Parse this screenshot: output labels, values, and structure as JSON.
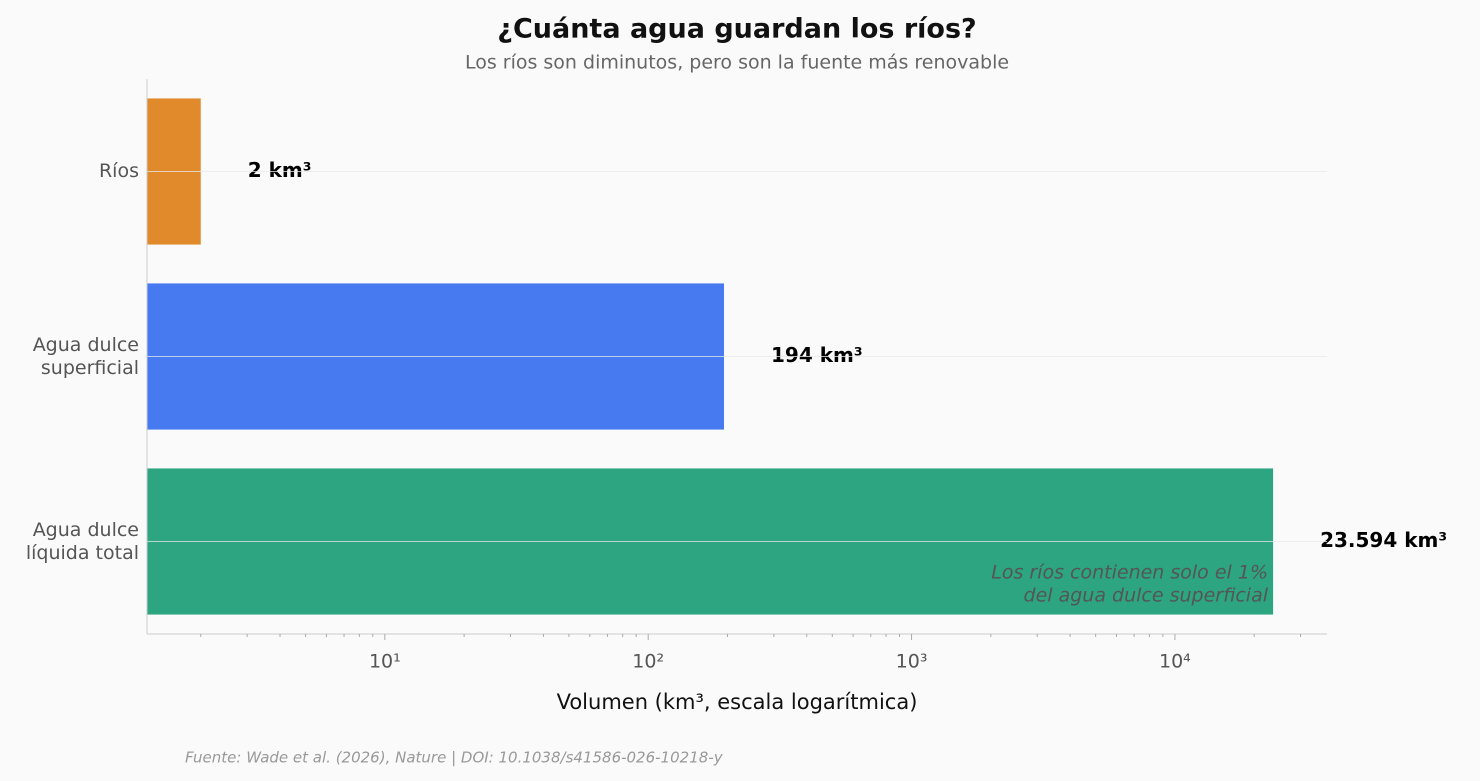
{
  "chart_data": {
    "type": "barh",
    "title": "¿Cuánta agua guardan los ríos?",
    "subtitle": "Los ríos son diminutos, pero son la fuente más renovable",
    "xlabel": "Volumen (km³, escala logarítmica)",
    "source": "Fuente: Wade et al. (2026), Nature | DOI: 10.1038/s41586-026-10218-y",
    "annotation": "Los ríos contienen solo el 1%\ndel agua dulce superficial",
    "categories": [
      "Ríos",
      "Agua dulce\nsuperficial",
      "Agua dulce\nlíquida total"
    ],
    "values": [
      2,
      194,
      23594
    ],
    "value_labels": [
      "2 km³",
      "194 km³",
      "23.594 km³"
    ],
    "colors": [
      "#e08a2c",
      "#4779f0",
      "#2ca580"
    ],
    "xscale": "log",
    "xlim": [
      1.25,
      37800
    ],
    "xticks": [
      {
        "value": 10,
        "label": "10¹"
      },
      {
        "value": 100,
        "label": "10²"
      },
      {
        "value": 1000,
        "label": "10³"
      },
      {
        "value": 10000,
        "label": "10⁴"
      }
    ],
    "xminorticks": [
      2,
      3,
      4,
      5,
      6,
      7,
      8,
      9,
      20,
      30,
      40,
      50,
      60,
      70,
      80,
      90,
      200,
      300,
      400,
      500,
      600,
      700,
      800,
      900,
      2000,
      3000,
      4000,
      5000,
      6000,
      7000,
      8000,
      9000,
      20000,
      30000
    ],
    "grid": true
  }
}
